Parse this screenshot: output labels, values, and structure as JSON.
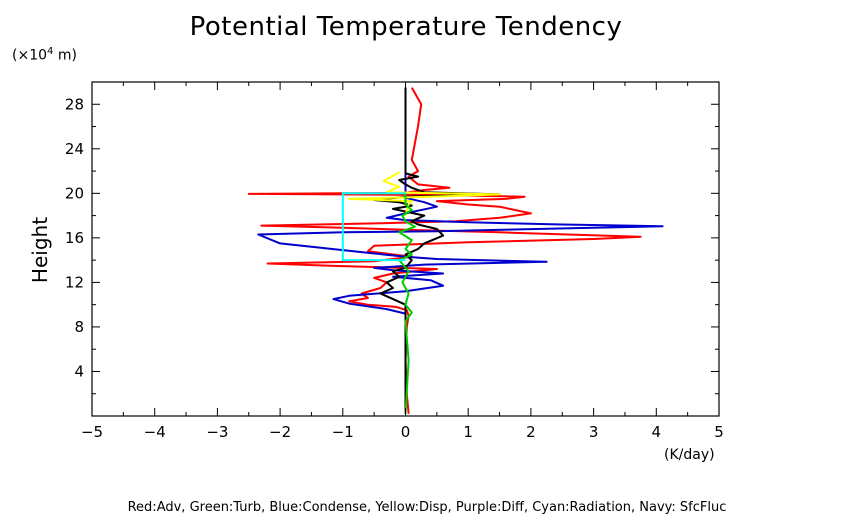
{
  "chart_data": {
    "type": "line",
    "title": "Potential Temperature Tendency",
    "ylabel": "Height",
    "y_unit_prefix": "(×10",
    "y_unit_exp": "4",
    "y_unit_suffix": " m)",
    "x_unit": "(K/day)",
    "xlim": [
      -5,
      5
    ],
    "ylim": [
      0,
      30
    ],
    "x_ticks": [
      -5,
      -4,
      -3,
      -2,
      -1,
      0,
      1,
      2,
      3,
      4,
      5
    ],
    "y_ticks": [
      4,
      8,
      12,
      16,
      20,
      24,
      28
    ],
    "legend_text": "Red:Adv, Green:Turb, Blue:Condense, Yellow:Disp, Purple:Diff, Cyan:Radiation, Navy: SfcFluc",
    "series": [
      {
        "color": "#ff0000",
        "points": [
          [
            0.05,
            0.2
          ],
          [
            0.02,
            2
          ],
          [
            0.0,
            5
          ],
          [
            0.02,
            8
          ],
          [
            0.05,
            9
          ],
          [
            0.02,
            9.5
          ],
          [
            -0.15,
            9.8
          ],
          [
            -0.6,
            10.0
          ],
          [
            -0.9,
            10.3
          ],
          [
            -0.6,
            10.6
          ],
          [
            -0.7,
            11.0
          ],
          [
            -0.4,
            11.5
          ],
          [
            -0.3,
            12.0
          ],
          [
            -0.5,
            12.4
          ],
          [
            -0.2,
            12.8
          ],
          [
            0.5,
            13.2
          ],
          [
            -1.2,
            13.5
          ],
          [
            -2.2,
            13.7
          ],
          [
            -0.5,
            13.9
          ],
          [
            0.1,
            14.3
          ],
          [
            -0.6,
            14.8
          ],
          [
            -0.5,
            15.3
          ],
          [
            1.0,
            15.6
          ],
          [
            3.0,
            15.9
          ],
          [
            3.75,
            16.1
          ],
          [
            1.5,
            16.5
          ],
          [
            0.2,
            16.7
          ],
          [
            -1.0,
            16.9
          ],
          [
            -2.3,
            17.1
          ],
          [
            -0.5,
            17.3
          ],
          [
            0.8,
            17.5
          ],
          [
            1.5,
            17.8
          ],
          [
            2.0,
            18.2
          ],
          [
            1.5,
            18.8
          ],
          [
            1.0,
            19.0
          ],
          [
            0.5,
            19.3
          ],
          [
            1.6,
            19.5
          ],
          [
            1.9,
            19.7
          ],
          [
            0.5,
            19.85
          ],
          [
            -2.5,
            19.95
          ],
          [
            0.0,
            20.05
          ],
          [
            0.3,
            20.3
          ],
          [
            0.7,
            20.5
          ],
          [
            0.2,
            20.8
          ],
          [
            0.05,
            21.5
          ],
          [
            0.2,
            22.0
          ],
          [
            0.1,
            23.0
          ],
          [
            0.2,
            26.0
          ],
          [
            0.25,
            28.0
          ],
          [
            0.1,
            29.5
          ]
        ]
      },
      {
        "color": "#0000cc",
        "points": [
          [
            0.0,
            0.2
          ],
          [
            0.0,
            8
          ],
          [
            0.0,
            9.2
          ],
          [
            -0.3,
            9.6
          ],
          [
            -0.9,
            10.1
          ],
          [
            -1.15,
            10.5
          ],
          [
            -0.9,
            10.8
          ],
          [
            0.0,
            11.2
          ],
          [
            0.6,
            11.7
          ],
          [
            0.4,
            12.2
          ],
          [
            -0.2,
            12.5
          ],
          [
            0.6,
            12.8
          ],
          [
            -0.2,
            13.1
          ],
          [
            -0.5,
            13.3
          ],
          [
            0.3,
            13.6
          ],
          [
            2.25,
            13.85
          ],
          [
            0.5,
            14.1
          ],
          [
            0.0,
            14.3
          ],
          [
            -1.0,
            14.9
          ],
          [
            -2.0,
            15.5
          ],
          [
            -2.35,
            16.3
          ],
          [
            -1.0,
            16.5
          ],
          [
            0.5,
            16.6
          ],
          [
            3.0,
            16.9
          ],
          [
            4.1,
            17.05
          ],
          [
            2.5,
            17.2
          ],
          [
            1.0,
            17.4
          ],
          [
            0.0,
            17.6
          ],
          [
            -0.3,
            17.8
          ],
          [
            0.0,
            18.2
          ],
          [
            0.5,
            18.8
          ],
          [
            0.3,
            19.2
          ],
          [
            0.0,
            19.6
          ],
          [
            0.0,
            29.5
          ]
        ]
      },
      {
        "color": "#000000",
        "points": [
          [
            0.0,
            0.2
          ],
          [
            0.0,
            10.0
          ],
          [
            -0.2,
            10.5
          ],
          [
            -0.4,
            11.0
          ],
          [
            -0.2,
            11.5
          ],
          [
            -0.3,
            12.0
          ],
          [
            -0.1,
            12.5
          ],
          [
            -0.2,
            13.0
          ],
          [
            0.0,
            13.3
          ],
          [
            0.1,
            14.0
          ],
          [
            0.0,
            14.5
          ],
          [
            0.2,
            15.0
          ],
          [
            0.3,
            15.5
          ],
          [
            0.6,
            16.2
          ],
          [
            0.5,
            16.8
          ],
          [
            0.2,
            17.2
          ],
          [
            0.1,
            17.5
          ],
          [
            0.3,
            18.0
          ],
          [
            -0.2,
            18.6
          ],
          [
            0.1,
            18.9
          ],
          [
            -0.1,
            19.2
          ],
          [
            -0.5,
            19.4
          ],
          [
            0.0,
            19.7
          ],
          [
            1.5,
            19.9
          ],
          [
            0.3,
            20.1
          ],
          [
            0.1,
            20.5
          ],
          [
            0.0,
            20.8
          ],
          [
            -0.1,
            21.2
          ],
          [
            0.2,
            21.5
          ],
          [
            0.0,
            21.8
          ],
          [
            0.0,
            29.5
          ]
        ]
      },
      {
        "color": "#ffff00",
        "points": [
          [
            -0.1,
            21.9
          ],
          [
            -0.35,
            21.1
          ],
          [
            -0.1,
            20.6
          ],
          [
            -0.3,
            20.1
          ],
          [
            1.5,
            19.9
          ],
          [
            0.4,
            19.7
          ],
          [
            -0.9,
            19.5
          ],
          [
            0.1,
            19.3
          ],
          [
            0.05,
            19.0
          ],
          [
            0.0,
            18.0
          ]
        ]
      },
      {
        "color": "#00cc00",
        "points": [
          [
            0.0,
            0.2
          ],
          [
            0.05,
            5
          ],
          [
            0.0,
            8.5
          ],
          [
            0.1,
            9.3
          ],
          [
            0.0,
            10.0
          ],
          [
            0.05,
            11.0
          ],
          [
            -0.05,
            12.0
          ],
          [
            0.05,
            13.0
          ],
          [
            -0.1,
            14.0
          ],
          [
            0.1,
            14.5
          ],
          [
            0.0,
            15.0
          ],
          [
            0.1,
            15.8
          ],
          [
            -0.1,
            16.5
          ],
          [
            0.15,
            17.0
          ],
          [
            0.0,
            17.5
          ],
          [
            -0.05,
            18.0
          ],
          [
            0.1,
            18.5
          ],
          [
            0.0,
            19.0
          ],
          [
            0.0,
            20.0
          ]
        ]
      },
      {
        "color": "#00ffff",
        "points": [
          [
            0.0,
            20.0
          ],
          [
            -1.0,
            20.0
          ],
          [
            -1.0,
            14.0
          ],
          [
            0.0,
            14.0
          ]
        ]
      }
    ]
  }
}
